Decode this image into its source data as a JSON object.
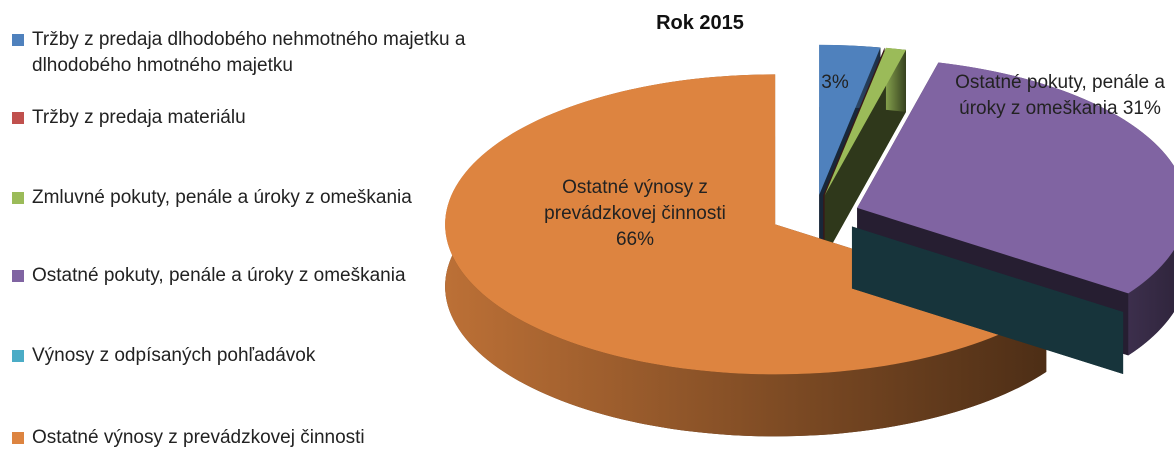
{
  "chart_data": {
    "type": "pie",
    "title": "Rok 2015",
    "categories": [
      "Tržby z predaja dlhodobého nehmotného majetku a dlhodobého hmotného majetku",
      "Tržby z predaja materiálu",
      "Zmluvné pokuty, penále a úroky z omeškania",
      "Ostatné pokuty, penále a úroky z omeškania",
      "Výnosy z odpísaných pohľadávok",
      "Ostatné výnosy z prevádzkovej činnosti"
    ],
    "values": [
      3,
      0,
      1,
      31,
      0,
      66
    ],
    "value_labels": [
      "3%",
      null,
      null,
      "31%",
      null,
      "66%"
    ],
    "colors": [
      "#4f81bd",
      "#c0504d",
      "#9bbb59",
      "#8064a2",
      "#4bacc6",
      "#dd8440"
    ],
    "legend": "left"
  }
}
